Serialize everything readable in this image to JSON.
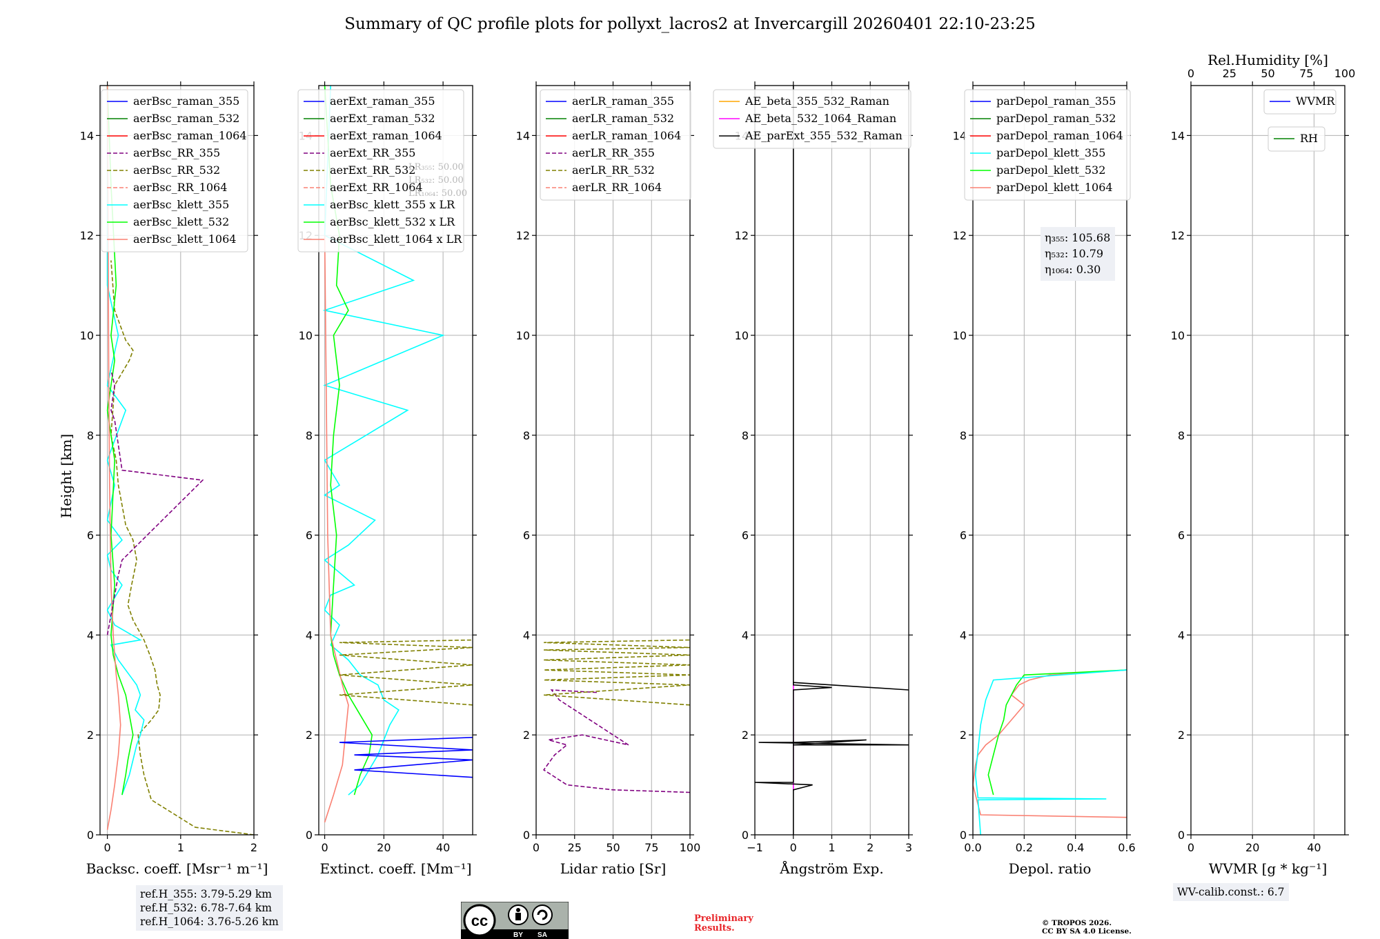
{
  "figure": {
    "title": "Summary of QC profile plots for pollyxt_lacros2 at Invercargill 20260401 22:10-23:25",
    "ylabel": "Height [km]",
    "ref_heights": [
      "ref.H_355: 3.79-5.29 km",
      "ref.H_532: 6.78-7.64 km",
      "ref.H_1064: 3.76-5.26 km"
    ],
    "wv_calib": "WV-calib.const.: 6.7",
    "preliminary": [
      "Preliminary",
      "Results."
    ],
    "license": [
      "© TROPOS 2026.",
      "CC BY SA 4.0 License."
    ],
    "cc_labels": [
      "BY",
      "SA"
    ]
  },
  "colors": {
    "blue": "#0000ff",
    "green": "#008000",
    "red": "#ff0000",
    "purple": "#800080",
    "olive": "#808000",
    "salmon": "#fa8072",
    "cyan": "#00ffff",
    "lime": "#00ff00",
    "orange": "#ffa500",
    "magenta": "#ff00ff",
    "black": "#000000"
  },
  "chart_data": [
    {
      "type": "line",
      "id": "bsc",
      "xlabel": "Backsc. coeff. [Msr⁻¹ m⁻¹]",
      "xlim": [
        -0.1,
        2
      ],
      "ylim": [
        0,
        15
      ],
      "xticks": [
        0,
        1,
        2
      ],
      "xticklabels": [
        "0",
        "1",
        "2"
      ],
      "yticks": [
        0,
        2,
        4,
        6,
        8,
        10,
        12,
        14
      ],
      "legend": [
        {
          "label": "aerBsc_raman_355",
          "color": "blue",
          "dash": false
        },
        {
          "label": "aerBsc_raman_532",
          "color": "green",
          "dash": false
        },
        {
          "label": "aerBsc_raman_1064",
          "color": "red",
          "dash": false
        },
        {
          "label": "aerBsc_RR_355",
          "color": "purple",
          "dash": true
        },
        {
          "label": "aerBsc_RR_532",
          "color": "olive",
          "dash": true
        },
        {
          "label": "aerBsc_RR_1064",
          "color": "salmon",
          "dash": true
        },
        {
          "label": "aerBsc_klett_355",
          "color": "cyan",
          "dash": false
        },
        {
          "label": "aerBsc_klett_532",
          "color": "lime",
          "dash": false
        },
        {
          "label": "aerBsc_klett_1064",
          "color": "salmon",
          "dash": false
        }
      ],
      "series": [
        {
          "name": "aerBsc_RR_532",
          "color": "olive",
          "dash": true,
          "x": [
            2.0,
            1.2,
            0.6,
            0.5,
            0.45,
            0.42,
            0.6,
            0.7,
            0.72,
            0.68,
            0.65,
            0.58,
            0.5,
            0.35,
            0.28,
            0.33,
            0.4,
            0.35,
            0.25,
            0.2,
            0.15,
            0.12,
            0.05,
            0.1,
            0.3,
            0.35,
            0.25,
            0.1,
            0.05
          ],
          "y": [
            0.0,
            0.15,
            0.7,
            1.2,
            1.6,
            2.0,
            2.3,
            2.5,
            2.8,
            3.0,
            3.3,
            3.6,
            3.9,
            4.3,
            4.6,
            5.0,
            5.5,
            5.9,
            6.2,
            6.6,
            7.0,
            7.5,
            8.0,
            9.0,
            9.5,
            9.7,
            9.9,
            10.5,
            11.5
          ]
        },
        {
          "name": "aerBsc_klett_355",
          "color": "cyan",
          "dash": false,
          "x": [
            0.2,
            0.3,
            0.35,
            0.4,
            0.45,
            0.5,
            0.38,
            0.45,
            0.4,
            0.3,
            0.15,
            0.05,
            0.45,
            0.1,
            0.0,
            0.2,
            0.05,
            0.0,
            0.2,
            0.0,
            0.1,
            0.0,
            0.25,
            0.0,
            0.15,
            0.0,
            0.0
          ],
          "y": [
            0.8,
            1.2,
            1.5,
            1.8,
            2.0,
            2.3,
            2.5,
            2.8,
            3.0,
            3.2,
            3.5,
            3.8,
            3.9,
            4.2,
            4.5,
            5.0,
            5.3,
            5.6,
            5.9,
            6.3,
            7.0,
            7.5,
            8.5,
            9.0,
            10.0,
            11.0,
            15.0
          ]
        },
        {
          "name": "aerBsc_klett_532",
          "color": "lime",
          "dash": false,
          "x": [
            0.2,
            0.25,
            0.28,
            0.32,
            0.35,
            0.3,
            0.25,
            0.15,
            0.08,
            0.05,
            0.1,
            0.05,
            0.1,
            0.0,
            0.1,
            0.05,
            0.12,
            0.05,
            0.0
          ],
          "y": [
            0.8,
            1.2,
            1.5,
            1.8,
            2.0,
            2.4,
            2.8,
            3.2,
            3.6,
            4.0,
            5.0,
            6.0,
            7.5,
            8.5,
            9.5,
            10.0,
            11.0,
            13.0,
            15.0
          ]
        },
        {
          "name": "aerBsc_klett_1064",
          "color": "salmon",
          "dash": false,
          "x": [
            0.0,
            0.05,
            0.1,
            0.15,
            0.18,
            0.15,
            0.12,
            0.1,
            0.08,
            0.05,
            0.03,
            0.02,
            0.01,
            0.0
          ],
          "y": [
            0.1,
            0.5,
            1.0,
            1.6,
            2.2,
            2.8,
            3.2,
            3.6,
            4.0,
            5.0,
            7.0,
            9.0,
            12.0,
            15.0
          ]
        },
        {
          "name": "aerBsc_RR_355",
          "color": "purple",
          "dash": true,
          "x": [
            0.0,
            0.05,
            0.1,
            0.15,
            0.2,
            1.3,
            0.2,
            0.1,
            0.05,
            0.1,
            0.05
          ],
          "y": [
            4.0,
            4.4,
            4.8,
            5.2,
            5.5,
            7.1,
            7.3,
            8.3,
            8.5,
            9.0,
            9.3
          ]
        }
      ]
    },
    {
      "type": "line",
      "id": "ext",
      "xlabel": "Extinct. coeff. [Mm⁻¹]",
      "xlim": [
        -2,
        50
      ],
      "ylim": [
        0,
        15
      ],
      "xticks": [
        0,
        20,
        40
      ],
      "xticklabels": [
        "0",
        "20",
        "40"
      ],
      "yticks": [
        0,
        2,
        4,
        6,
        8,
        10,
        12,
        14
      ],
      "legend": [
        {
          "label": "aerExt_raman_355",
          "color": "blue",
          "dash": false
        },
        {
          "label": "aerExt_raman_532",
          "color": "green",
          "dash": false
        },
        {
          "label": "aerExt_raman_1064",
          "color": "red",
          "dash": false
        },
        {
          "label": "aerExt_RR_355",
          "color": "purple",
          "dash": true
        },
        {
          "label": "aerExt_RR_532",
          "color": "olive",
          "dash": true
        },
        {
          "label": "aerExt_RR_1064",
          "color": "salmon",
          "dash": true
        },
        {
          "label": "aerBsc_klett_355 x LR",
          "color": "cyan",
          "dash": false
        },
        {
          "label": "aerBsc_klett_532 x LR",
          "color": "lime",
          "dash": false
        },
        {
          "label": "aerBsc_klett_1064 x LR",
          "color": "salmon",
          "dash": false
        }
      ],
      "lr_labels": [
        "LR₃₅₅: 50.00",
        "LR₅₃₂: 50.00",
        "LR₁₀₆₄: 50.00"
      ],
      "series": [
        {
          "name": "aerBsc_klett_355 x LR",
          "color": "cyan",
          "dash": false,
          "x": [
            8,
            12,
            15,
            18,
            20,
            22,
            25,
            20,
            18,
            12,
            8,
            2,
            5,
            0,
            2,
            10,
            0,
            8,
            17,
            0,
            5,
            0,
            28,
            0,
            40,
            0,
            30,
            0,
            2
          ],
          "y": [
            0.8,
            1.0,
            1.3,
            1.6,
            1.9,
            2.2,
            2.5,
            2.7,
            3.0,
            3.2,
            3.5,
            3.8,
            4.2,
            4.5,
            4.8,
            5.0,
            5.5,
            5.8,
            6.3,
            6.8,
            7.0,
            7.5,
            8.5,
            9.0,
            10.0,
            10.5,
            11.1,
            12.0,
            15.0
          ]
        },
        {
          "name": "aerBsc_klett_532 x LR",
          "color": "lime",
          "dash": false,
          "x": [
            10,
            12,
            15,
            16,
            12,
            8,
            5,
            3,
            2,
            3,
            4,
            2,
            3,
            5,
            3,
            8,
            4,
            5,
            2,
            0
          ],
          "y": [
            0.8,
            1.2,
            1.6,
            2.0,
            2.4,
            2.8,
            3.2,
            3.6,
            4.0,
            5.0,
            6.0,
            7.0,
            8.0,
            9.0,
            10.0,
            10.5,
            11.0,
            12.0,
            13.0,
            15.0
          ]
        },
        {
          "name": "aerBsc_klett_1064 x LR",
          "color": "salmon",
          "dash": false,
          "x": [
            0,
            3,
            6,
            7,
            8,
            6,
            4,
            2,
            1,
            0
          ],
          "y": [
            0.25,
            0.8,
            1.4,
            2.0,
            2.6,
            3.0,
            3.5,
            4.0,
            6.0,
            12.0
          ]
        },
        {
          "name": "aerExt_raman_355",
          "color": "blue",
          "dash": false,
          "x": [
            50,
            10,
            50,
            10,
            50,
            5,
            50
          ],
          "y": [
            1.15,
            1.3,
            1.5,
            1.6,
            1.7,
            1.85,
            1.95
          ]
        },
        {
          "name": "aerExt_RR_532",
          "color": "olive",
          "dash": true,
          "x": [
            50,
            5,
            50,
            5,
            50,
            5,
            50,
            5,
            50
          ],
          "y": [
            2.6,
            2.8,
            3.0,
            3.2,
            3.4,
            3.6,
            3.75,
            3.85,
            3.9
          ]
        }
      ]
    },
    {
      "type": "line",
      "id": "lr",
      "xlabel": "Lidar ratio [Sr]",
      "xlim": [
        0,
        100
      ],
      "ylim": [
        0,
        15
      ],
      "xticks": [
        0,
        25,
        50,
        75,
        100
      ],
      "xticklabels": [
        "0",
        "25",
        "50",
        "75",
        "100"
      ],
      "yticks": [
        0,
        2,
        4,
        6,
        8,
        10,
        12,
        14
      ],
      "legend": [
        {
          "label": "aerLR_raman_355",
          "color": "blue",
          "dash": false
        },
        {
          "label": "aerLR_raman_532",
          "color": "green",
          "dash": false
        },
        {
          "label": "aerLR_raman_1064",
          "color": "red",
          "dash": false
        },
        {
          "label": "aerLR_RR_355",
          "color": "purple",
          "dash": true
        },
        {
          "label": "aerLR_RR_532",
          "color": "olive",
          "dash": true
        },
        {
          "label": "aerLR_RR_1064",
          "color": "salmon",
          "dash": true
        }
      ],
      "series": [
        {
          "name": "aerLR_RR_355",
          "color": "purple",
          "dash": true,
          "x": [
            100,
            50,
            20,
            15,
            10,
            5,
            12,
            20,
            8,
            30,
            60,
            15,
            10,
            40
          ],
          "y": [
            0.85,
            0.9,
            1.0,
            1.1,
            1.2,
            1.3,
            1.6,
            1.8,
            1.9,
            2.0,
            1.8,
            2.7,
            2.9,
            2.85
          ]
        },
        {
          "name": "aerLR_RR_532",
          "color": "olive",
          "dash": true,
          "x": [
            100,
            5,
            100,
            5,
            100,
            5,
            100,
            5,
            100,
            5,
            100,
            5,
            100
          ],
          "y": [
            2.6,
            2.8,
            3.0,
            3.1,
            3.2,
            3.3,
            3.4,
            3.5,
            3.6,
            3.7,
            3.75,
            3.85,
            3.9
          ]
        }
      ]
    },
    {
      "type": "line",
      "id": "ae",
      "xlabel": "Ångström Exp.",
      "xlim": [
        -1,
        3
      ],
      "ylim": [
        0,
        15
      ],
      "xticks": [
        -1,
        0,
        1,
        2,
        3
      ],
      "xticklabels": [
        "−1",
        "0",
        "1",
        "2",
        "3"
      ],
      "yticks": [
        0,
        2,
        4,
        6,
        8,
        10,
        12,
        14
      ],
      "legend": [
        {
          "label": "AE_beta_355_532_Raman",
          "color": "orange",
          "dash": false
        },
        {
          "label": "AE_beta_532_1064_Raman",
          "color": "magenta",
          "dash": false
        },
        {
          "label": "AE_parExt_355_532_Raman",
          "color": "black",
          "dash": false
        }
      ],
      "series": [
        {
          "name": "AE_beta_532_1064_Raman",
          "color": "magenta",
          "dash": false,
          "x": [
            0,
            0
          ],
          "y": [
            0.9,
            3.05
          ]
        },
        {
          "name": "AE_parExt_355_532_Raman",
          "color": "black",
          "dash": false,
          "x": [
            0,
            0,
            0.5,
            -1,
            0,
            0,
            1.9,
            0,
            -0.9,
            3,
            0,
            0,
            1.0,
            0,
            0,
            3,
            0,
            0
          ],
          "y": [
            0.0,
            0.9,
            1.0,
            1.05,
            1.05,
            1.8,
            1.9,
            1.85,
            1.85,
            1.8,
            1.8,
            2.9,
            2.95,
            3.0,
            3.05,
            2.9,
            3.05,
            15.0
          ]
        }
      ]
    },
    {
      "type": "line",
      "id": "depol",
      "xlabel": "Depol. ratio",
      "xlim": [
        0,
        0.6
      ],
      "ylim": [
        0,
        15
      ],
      "xticks": [
        0,
        0.2,
        0.4,
        0.6
      ],
      "xticklabels": [
        "0.0",
        "0.2",
        "0.4",
        "0.6"
      ],
      "yticks": [
        0,
        2,
        4,
        6,
        8,
        10,
        12,
        14
      ],
      "legend": [
        {
          "label": "parDepol_raman_355",
          "color": "blue",
          "dash": false
        },
        {
          "label": "parDepol_raman_532",
          "color": "green",
          "dash": false
        },
        {
          "label": "parDepol_raman_1064",
          "color": "red",
          "dash": false
        },
        {
          "label": "parDepol_klett_355",
          "color": "cyan",
          "dash": false
        },
        {
          "label": "parDepol_klett_532",
          "color": "lime",
          "dash": false
        },
        {
          "label": "parDepol_klett_1064",
          "color": "salmon",
          "dash": false
        }
      ],
      "eta_labels": [
        "η₃₅₅: 105.68",
        "η₅₃₂: 10.79",
        "η₁₀₆₄: 0.30"
      ],
      "series": [
        {
          "name": "parDepol_klett_1064",
          "color": "salmon",
          "dash": false,
          "x": [
            0.6,
            0.03,
            0.0,
            0.01,
            0.02,
            0.05,
            0.1,
            0.15,
            0.2,
            0.15,
            0.18,
            0.22,
            0.3,
            0.6
          ],
          "y": [
            0.35,
            0.4,
            1.0,
            1.4,
            1.6,
            1.8,
            2.0,
            2.3,
            2.6,
            2.8,
            3.0,
            3.1,
            3.2,
            3.3
          ]
        },
        {
          "name": "parDepol_klett_532",
          "color": "lime",
          "dash": false,
          "x": [
            0.08,
            0.06,
            0.08,
            0.1,
            0.12,
            0.13,
            0.15,
            0.17,
            0.2,
            0.6
          ],
          "y": [
            0.8,
            1.2,
            1.6,
            2.0,
            2.3,
            2.6,
            2.8,
            3.0,
            3.2,
            3.3
          ]
        },
        {
          "name": "parDepol_klett_355",
          "color": "cyan",
          "dash": false,
          "x": [
            0.03,
            0.02,
            0.52,
            0.02,
            0.01,
            0.02,
            0.03,
            0.05,
            0.08,
            0.6
          ],
          "y": [
            0.0,
            0.7,
            0.72,
            0.74,
            1.2,
            1.7,
            2.2,
            2.7,
            3.1,
            3.3
          ]
        }
      ]
    },
    {
      "type": "line",
      "id": "wv",
      "xlabel": "WVMR [g * kg⁻¹]",
      "top_xlabel": "Rel.Humidity [%]",
      "xlim": [
        0,
        50
      ],
      "ylim": [
        0,
        15
      ],
      "xticks": [
        0,
        20,
        40
      ],
      "xticklabels": [
        "0",
        "20",
        "40"
      ],
      "top_xlim": [
        0,
        100
      ],
      "top_xticks": [
        0,
        25,
        50,
        75,
        100
      ],
      "top_xticklabels": [
        "0",
        "25",
        "50",
        "75",
        "100"
      ],
      "yticks": [
        0,
        2,
        4,
        6,
        8,
        10,
        12,
        14
      ],
      "legend": [
        {
          "label": "WVMR",
          "color": "blue",
          "dash": false
        }
      ],
      "legend2": [
        {
          "label": "RH",
          "color": "green",
          "dash": false
        }
      ],
      "series": []
    }
  ]
}
